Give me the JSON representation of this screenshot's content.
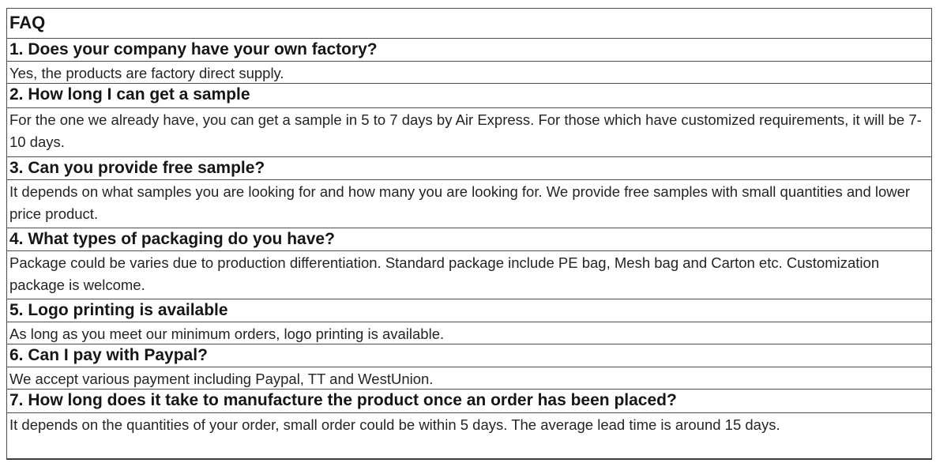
{
  "page": {
    "title": "FAQ"
  },
  "colors": {
    "background": "#ffffff",
    "border": "#4d4d4d",
    "question_text": "#161616",
    "answer_text": "#242424"
  },
  "faq": {
    "items": [
      {
        "question": "1. Does your company have your own factory?",
        "answer": "Yes, the products are factory direct supply."
      },
      {
        "question": "2. How long I can get a sample",
        "answer": "For the one we already have, you can get a sample in 5 to 7 days by Air Express. For those which have customized requirements, it will be 7- 10 days."
      },
      {
        "question": "3. Can you provide free sample?",
        "answer": "It depends on what samples you are looking for and how many you are looking for. We provide free samples with small quantities and lower price product."
      },
      {
        "question": "4. What types of packaging do you have?",
        "answer": "Package could be varies due to production differentiation. Standard package include PE bag, Mesh bag and Carton etc. Customization package is welcome."
      },
      {
        "question": "5. Logo printing is available",
        "answer": "As long as you meet our minimum orders, logo printing is available."
      },
      {
        "question": "6. Can I pay with Paypal?",
        "answer": "We accept various payment including Paypal, TT and WestUnion."
      },
      {
        "question": "7. How long does it take to manufacture the product once an order has been placed?",
        "answer": "It depends on the quantities of your order, small order could be within 5 days. The average lead time is around 15 days."
      }
    ]
  }
}
